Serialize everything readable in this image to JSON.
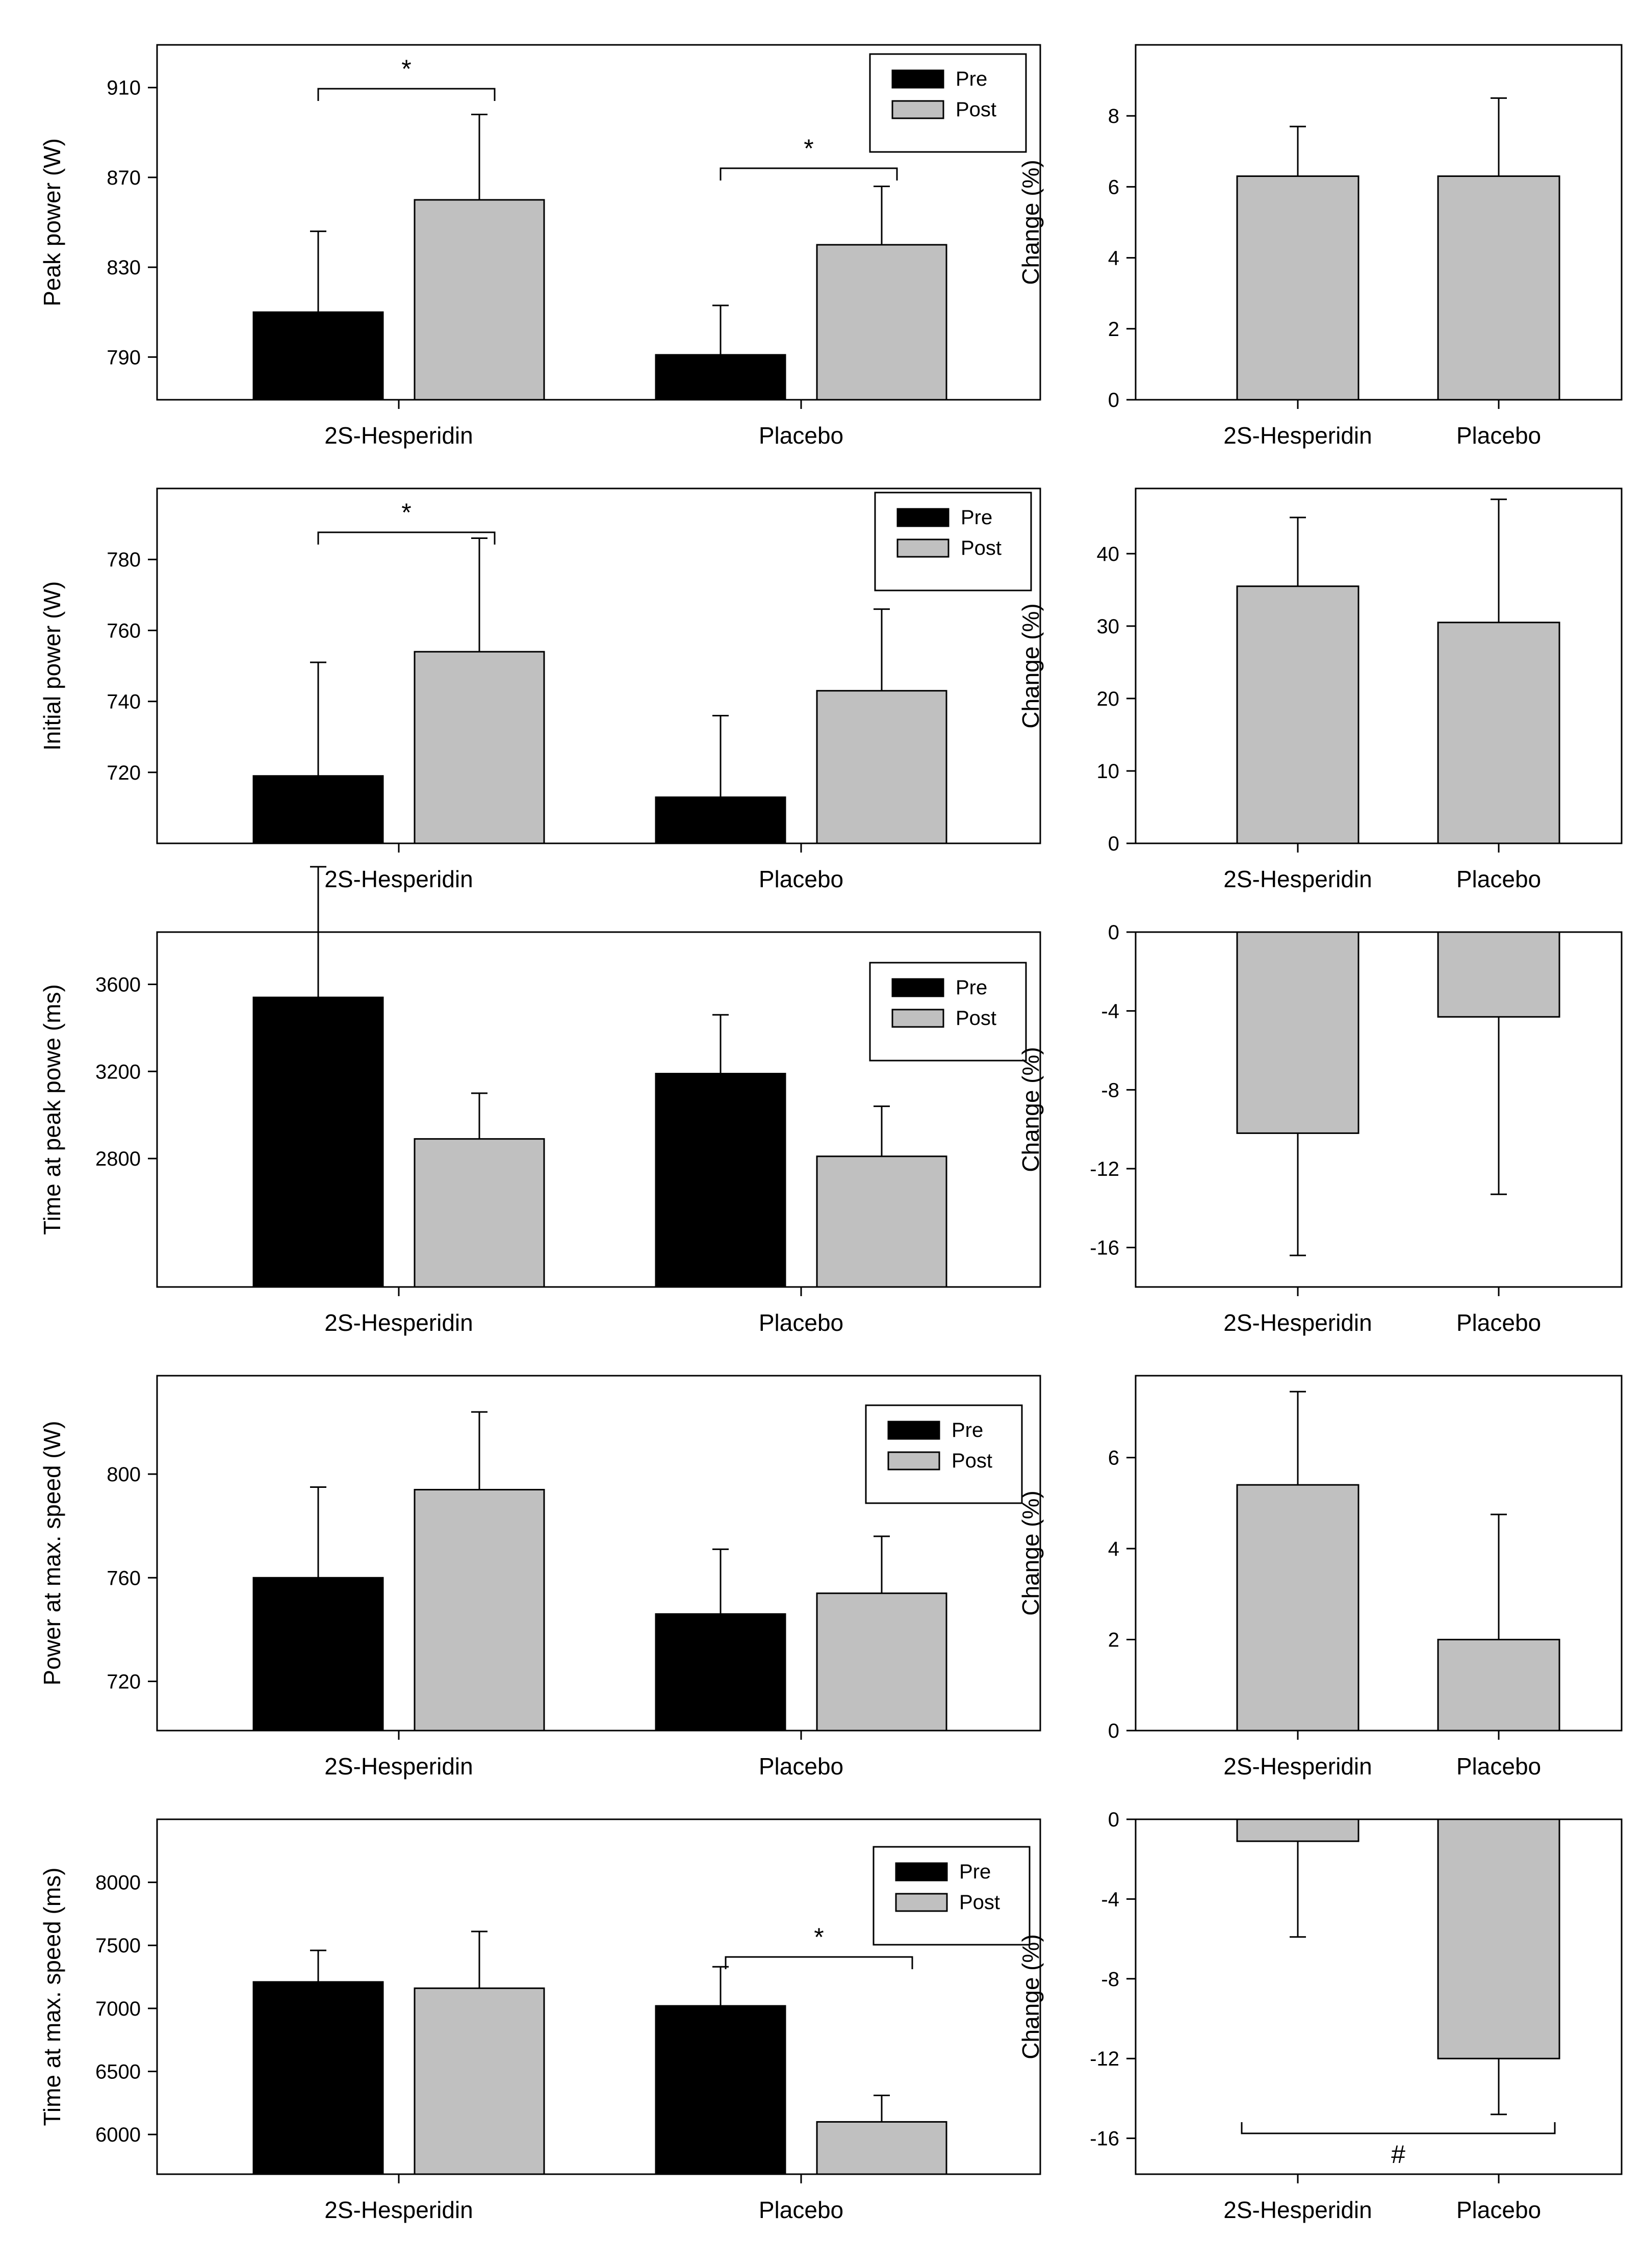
{
  "legend": {
    "pre_label": "Pre",
    "post_label": "Post",
    "pre_color": "#000000",
    "post_color": "#c0c0c0"
  },
  "change_bar_color": "#c0c0c0",
  "categories": [
    "2S-Hesperidin",
    "Placebo"
  ],
  "chart_data": [
    {
      "type": "bar",
      "title": "",
      "xlabel": "",
      "ylabel": "Peak power (W)",
      "categories": [
        "2S-Hesperidin",
        "Placebo"
      ],
      "series": [
        {
          "name": "Pre",
          "values": [
            810,
            791
          ],
          "errors": [
            36,
            22
          ]
        },
        {
          "name": "Post",
          "values": [
            860,
            840
          ],
          "errors": [
            38,
            26
          ]
        }
      ],
      "ylim": [
        771,
        929
      ],
      "yticks": [
        790,
        830,
        870,
        910
      ],
      "legend": "top-right",
      "significance": [
        {
          "from": "2S-Hesperidin Pre",
          "to": "2S-Hesperidin Post",
          "label": "*"
        },
        {
          "from": "Placebo Pre",
          "to": "Placebo Post",
          "label": "*"
        }
      ]
    },
    {
      "type": "bar",
      "title": "",
      "xlabel": "",
      "ylabel": "Change (%)",
      "categories": [
        "2S-Hesperidin",
        "Placebo"
      ],
      "series": [
        {
          "name": "Change",
          "values": [
            6.3,
            6.3
          ],
          "errors": [
            1.4,
            2.2
          ]
        }
      ],
      "ylim": [
        0,
        10
      ],
      "yticks": [
        0,
        2,
        4,
        6,
        8
      ]
    },
    {
      "type": "bar",
      "title": "",
      "xlabel": "",
      "ylabel": "Initial power (W)",
      "categories": [
        "2S-Hesperidin",
        "Placebo"
      ],
      "series": [
        {
          "name": "Pre",
          "values": [
            719,
            713
          ],
          "errors": [
            32,
            23
          ]
        },
        {
          "name": "Post",
          "values": [
            754,
            743
          ],
          "errors": [
            32,
            23
          ]
        }
      ],
      "ylim": [
        700,
        800
      ],
      "yticks": [
        720,
        740,
        760,
        780
      ],
      "legend": "top-right",
      "significance": [
        {
          "from": "2S-Hesperidin Pre",
          "to": "2S-Hesperidin Post",
          "label": "*"
        }
      ]
    },
    {
      "type": "bar",
      "title": "",
      "xlabel": "",
      "ylabel": "Change (%)",
      "categories": [
        "2S-Hesperidin",
        "Placebo"
      ],
      "series": [
        {
          "name": "Change",
          "values": [
            35.5,
            30.5
          ],
          "errors": [
            9.5,
            17
          ]
        }
      ],
      "ylim": [
        0,
        49
      ],
      "yticks": [
        0,
        10,
        20,
        30,
        40
      ]
    },
    {
      "type": "bar",
      "title": "",
      "xlabel": "",
      "ylabel": "Time at peak powe (ms)",
      "categories": [
        "2S-Hesperidin",
        "Placebo"
      ],
      "series": [
        {
          "name": "Pre",
          "values": [
            3540,
            3190
          ],
          "errors": [
            600,
            270
          ]
        },
        {
          "name": "Post",
          "values": [
            2890,
            2810
          ],
          "errors": [
            210,
            230
          ]
        }
      ],
      "ylim": [
        2210,
        3840
      ],
      "yticks": [
        2800,
        3200,
        3600
      ],
      "legend": "top-right"
    },
    {
      "type": "bar",
      "title": "",
      "xlabel": "",
      "ylabel": "Change (%)",
      "categories": [
        "2S-Hesperidin",
        "Placebo"
      ],
      "series": [
        {
          "name": "Change",
          "values": [
            -10.2,
            -4.3
          ],
          "errors": [
            6.2,
            9.0
          ]
        }
      ],
      "ylim": [
        -18,
        0
      ],
      "yticks": [
        0,
        -4,
        -8,
        -12,
        -16
      ]
    },
    {
      "type": "bar",
      "title": "",
      "xlabel": "",
      "ylabel": "Power at max. speed (W)",
      "categories": [
        "2S-Hesperidin",
        "Placebo"
      ],
      "series": [
        {
          "name": "Pre",
          "values": [
            760,
            746
          ],
          "errors": [
            35,
            25
          ]
        },
        {
          "name": "Post",
          "values": [
            794,
            754
          ],
          "errors": [
            30,
            22
          ]
        }
      ],
      "ylim": [
        701,
        838
      ],
      "yticks": [
        720,
        760,
        800
      ],
      "legend": "top-right"
    },
    {
      "type": "bar",
      "title": "",
      "xlabel": "",
      "ylabel": "Change (%)",
      "categories": [
        "2S-Hesperidin",
        "Placebo"
      ],
      "series": [
        {
          "name": "Change",
          "values": [
            5.4,
            2.0
          ],
          "errors": [
            2.05,
            2.75
          ]
        }
      ],
      "ylim": [
        0,
        7.8
      ],
      "yticks": [
        0,
        2,
        4,
        6
      ]
    },
    {
      "type": "bar",
      "title": "",
      "xlabel": "",
      "ylabel": "Time at max. speed (ms)",
      "categories": [
        "2S-Hesperidin",
        "Placebo"
      ],
      "series": [
        {
          "name": "Pre",
          "values": [
            7210,
            7020
          ],
          "errors": [
            250,
            310
          ]
        },
        {
          "name": "Post",
          "values": [
            7160,
            6100
          ],
          "errors": [
            450,
            210
          ]
        }
      ],
      "ylim": [
        5685,
        8500
      ],
      "yticks": [
        6000,
        6500,
        7000,
        7500,
        8000
      ],
      "legend": "top-right",
      "significance": [
        {
          "from": "Placebo Pre",
          "to": "Placebo Post",
          "label": "*"
        }
      ]
    },
    {
      "type": "bar",
      "title": "",
      "xlabel": "",
      "ylabel": "Change (%)",
      "categories": [
        "2S-Hesperidin",
        "Placebo"
      ],
      "series": [
        {
          "name": "Change",
          "values": [
            -1.1,
            -12.0
          ],
          "errors": [
            4.8,
            2.8
          ]
        }
      ],
      "ylim": [
        -17.8,
        0
      ],
      "yticks": [
        0,
        -4,
        -8,
        -12,
        -16
      ],
      "significance": [
        {
          "from": "2S-Hesperidin",
          "to": "Placebo",
          "label": "#"
        }
      ]
    }
  ]
}
